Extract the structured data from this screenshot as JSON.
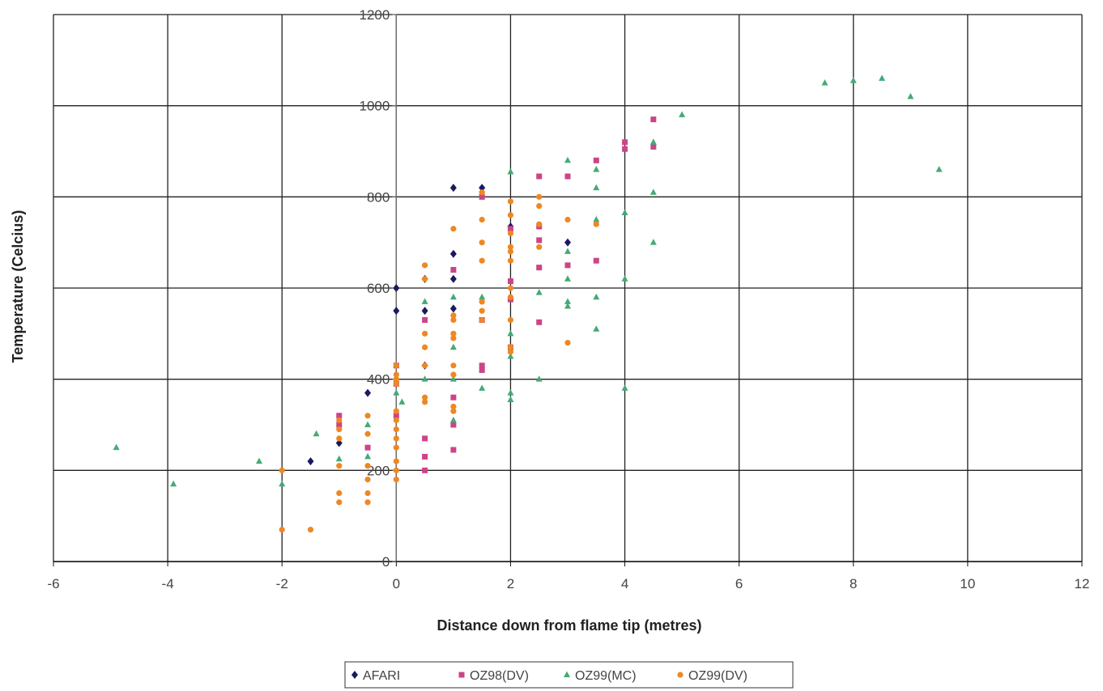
{
  "chart_data": {
    "type": "scatter",
    "title": "",
    "xlabel": "Distance down from flame tip (metres)",
    "ylabel": "Temperature (Celcius)",
    "xlim": [
      -6,
      12
    ],
    "ylim": [
      0,
      1200
    ],
    "x_ticks": [
      "-6",
      "-4",
      "-2",
      "0",
      "2",
      "4",
      "6",
      "8",
      "10",
      "12"
    ],
    "y_ticks": [
      "0",
      "200",
      "400",
      "600",
      "800",
      "1000",
      "1200"
    ],
    "grid": true,
    "legend_position": "bottom",
    "series": [
      {
        "name": "AFARI",
        "color": "#1a1a5e",
        "marker": "diamond",
        "points": [
          [
            1,
            820
          ],
          [
            1.5,
            820
          ],
          [
            0,
            600
          ],
          [
            0,
            550
          ],
          [
            0.5,
            620
          ],
          [
            0.5,
            550
          ],
          [
            0.5,
            430
          ],
          [
            1,
            675
          ],
          [
            1,
            620
          ],
          [
            1,
            555
          ],
          [
            2,
            735
          ],
          [
            3,
            700
          ],
          [
            -0.5,
            370
          ],
          [
            -1,
            260
          ],
          [
            -1.5,
            220
          ]
        ]
      },
      {
        "name": "OZ98(DV)",
        "color": "#cc4488",
        "marker": "square",
        "points": [
          [
            4.5,
            970
          ],
          [
            4.5,
            910
          ],
          [
            4,
            920
          ],
          [
            4,
            905
          ],
          [
            3.5,
            880
          ],
          [
            3,
            845
          ],
          [
            3,
            650
          ],
          [
            2.5,
            845
          ],
          [
            2.5,
            735
          ],
          [
            2.5,
            705
          ],
          [
            2.5,
            645
          ],
          [
            2.5,
            525
          ],
          [
            2,
            730
          ],
          [
            2,
            615
          ],
          [
            2,
            575
          ],
          [
            2,
            470
          ],
          [
            1.5,
            800
          ],
          [
            1.5,
            530
          ],
          [
            1.5,
            430
          ],
          [
            1.5,
            420
          ],
          [
            1,
            640
          ],
          [
            1,
            360
          ],
          [
            1,
            300
          ],
          [
            1,
            245
          ],
          [
            0.5,
            530
          ],
          [
            0.5,
            270
          ],
          [
            0.5,
            230
          ],
          [
            0.5,
            200
          ],
          [
            0,
            430
          ],
          [
            0,
            390
          ],
          [
            0,
            320
          ],
          [
            -0.5,
            250
          ],
          [
            -1,
            320
          ],
          [
            -1,
            300
          ],
          [
            3.5,
            660
          ]
        ]
      },
      {
        "name": "OZ99(MC)",
        "color": "#44aa77",
        "marker": "triangle",
        "points": [
          [
            -4.9,
            250
          ],
          [
            -3.9,
            170
          ],
          [
            -2.4,
            220
          ],
          [
            -2,
            170
          ],
          [
            -1.4,
            280
          ],
          [
            -1,
            225
          ],
          [
            -0.5,
            300
          ],
          [
            -0.5,
            230
          ],
          [
            0,
            370
          ],
          [
            0.1,
            350
          ],
          [
            0.5,
            570
          ],
          [
            0.5,
            400
          ],
          [
            1,
            580
          ],
          [
            1,
            470
          ],
          [
            1,
            400
          ],
          [
            1,
            310
          ],
          [
            1.5,
            580
          ],
          [
            1.5,
            380
          ],
          [
            2,
            855
          ],
          [
            2,
            500
          ],
          [
            2,
            450
          ],
          [
            2,
            370
          ],
          [
            2,
            355
          ],
          [
            2.5,
            590
          ],
          [
            2.5,
            400
          ],
          [
            3,
            880
          ],
          [
            3,
            680
          ],
          [
            3,
            620
          ],
          [
            3,
            570
          ],
          [
            3,
            560
          ],
          [
            3.5,
            860
          ],
          [
            3.5,
            820
          ],
          [
            3.5,
            750
          ],
          [
            3.5,
            580
          ],
          [
            3.5,
            510
          ],
          [
            4,
            765
          ],
          [
            4,
            620
          ],
          [
            4,
            380
          ],
          [
            4.5,
            920
          ],
          [
            4.5,
            810
          ],
          [
            4.5,
            700
          ],
          [
            5,
            980
          ],
          [
            7.5,
            1050
          ],
          [
            8,
            1055
          ],
          [
            8.5,
            1060
          ],
          [
            9,
            1020
          ],
          [
            9.5,
            860
          ]
        ]
      },
      {
        "name": "OZ99(DV)",
        "color": "#ee8822",
        "marker": "circle",
        "points": [
          [
            -2,
            200
          ],
          [
            -2,
            70
          ],
          [
            -1.5,
            70
          ],
          [
            -1,
            310
          ],
          [
            -1,
            290
          ],
          [
            -1,
            270
          ],
          [
            -1,
            210
          ],
          [
            -1,
            150
          ],
          [
            -1,
            130
          ],
          [
            -0.5,
            320
          ],
          [
            -0.5,
            280
          ],
          [
            -0.5,
            210
          ],
          [
            -0.5,
            180
          ],
          [
            -0.5,
            150
          ],
          [
            -0.5,
            130
          ],
          [
            0,
            430
          ],
          [
            0,
            410
          ],
          [
            0,
            400
          ],
          [
            0,
            390
          ],
          [
            0,
            330
          ],
          [
            0,
            310
          ],
          [
            0,
            290
          ],
          [
            0,
            270
          ],
          [
            0,
            250
          ],
          [
            0,
            220
          ],
          [
            0,
            200
          ],
          [
            0,
            180
          ],
          [
            0.5,
            650
          ],
          [
            0.5,
            620
          ],
          [
            0.5,
            500
          ],
          [
            0.5,
            470
          ],
          [
            0.5,
            430
          ],
          [
            0.5,
            360
          ],
          [
            0.5,
            350
          ],
          [
            1,
            730
          ],
          [
            1,
            540
          ],
          [
            1,
            530
          ],
          [
            1,
            500
          ],
          [
            1,
            490
          ],
          [
            1,
            430
          ],
          [
            1,
            410
          ],
          [
            1,
            340
          ],
          [
            1,
            330
          ],
          [
            1.5,
            810
          ],
          [
            1.5,
            750
          ],
          [
            1.5,
            700
          ],
          [
            1.5,
            660
          ],
          [
            1.5,
            570
          ],
          [
            1.5,
            550
          ],
          [
            1.5,
            530
          ],
          [
            2,
            790
          ],
          [
            2,
            760
          ],
          [
            2,
            720
          ],
          [
            2,
            690
          ],
          [
            2,
            680
          ],
          [
            2,
            660
          ],
          [
            2,
            600
          ],
          [
            2,
            580
          ],
          [
            2,
            530
          ],
          [
            2,
            470
          ],
          [
            2,
            460
          ],
          [
            2.5,
            800
          ],
          [
            2.5,
            780
          ],
          [
            2.5,
            740
          ],
          [
            2.5,
            690
          ],
          [
            3,
            750
          ],
          [
            3,
            480
          ],
          [
            3.5,
            740
          ]
        ]
      }
    ]
  }
}
